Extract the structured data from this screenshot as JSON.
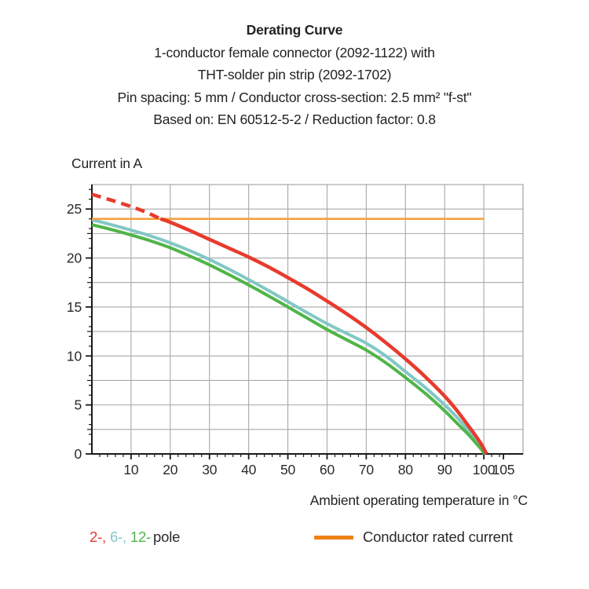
{
  "header": {
    "title": "Derating Curve",
    "subtitle_lines": [
      "1-conductor female connector (2092-1122) with",
      "THT-solder pin strip (2092-1702)",
      "Pin spacing: 5 mm / Conductor cross-section: 2.5 mm² \"f-st\"",
      "Based on: EN 60512-5-2 / Reduction factor: 0.8"
    ]
  },
  "chart_data": {
    "type": "line",
    "title": "Derating Curve",
    "xlabel": "Ambient operating temperature in °C",
    "ylabel": "Current in A",
    "xlim": [
      0,
      110
    ],
    "ylim": [
      0,
      27.5
    ],
    "x_major_ticks": [
      10,
      20,
      30,
      40,
      50,
      60,
      70,
      80,
      90,
      100,
      105
    ],
    "y_major_ticks": [
      0,
      5,
      10,
      15,
      20,
      25
    ],
    "x_minor_step": 2,
    "y_minor_step": 1,
    "x_grid_step": 10,
    "y_grid_step": 2.5,
    "grid": true,
    "legend_position": "bottom",
    "grid_color": "#a8a8a8",
    "axis_color": "#1a1a1a",
    "series": [
      {
        "name": "6-pole",
        "color": "#82c7c5",
        "style": "solid",
        "width": 4,
        "points": [
          [
            0,
            23.9
          ],
          [
            5,
            23.4
          ],
          [
            10,
            22.85
          ],
          [
            15,
            22.25
          ],
          [
            20,
            21.55
          ],
          [
            25,
            20.75
          ],
          [
            30,
            19.85
          ],
          [
            35,
            18.85
          ],
          [
            40,
            17.8
          ],
          [
            45,
            16.7
          ],
          [
            50,
            15.55
          ],
          [
            55,
            14.4
          ],
          [
            60,
            13.3
          ],
          [
            65,
            12.3
          ],
          [
            70,
            11.3
          ],
          [
            75,
            10.0
          ],
          [
            80,
            8.4
          ],
          [
            85,
            6.8
          ],
          [
            90,
            5.0
          ],
          [
            93,
            3.8
          ],
          [
            96,
            2.4
          ],
          [
            98,
            1.4
          ],
          [
            99.5,
            0.6
          ],
          [
            100.4,
            0
          ]
        ]
      },
      {
        "name": "12-pole",
        "color": "#50b548",
        "style": "solid",
        "width": 4,
        "points": [
          [
            0,
            23.4
          ],
          [
            5,
            22.9
          ],
          [
            10,
            22.35
          ],
          [
            15,
            21.75
          ],
          [
            20,
            21.05
          ],
          [
            25,
            20.2
          ],
          [
            30,
            19.3
          ],
          [
            35,
            18.3
          ],
          [
            40,
            17.25
          ],
          [
            45,
            16.15
          ],
          [
            50,
            15.0
          ],
          [
            55,
            13.85
          ],
          [
            60,
            12.7
          ],
          [
            65,
            11.65
          ],
          [
            70,
            10.6
          ],
          [
            75,
            9.3
          ],
          [
            80,
            7.8
          ],
          [
            85,
            6.2
          ],
          [
            90,
            4.4
          ],
          [
            93,
            3.2
          ],
          [
            96,
            2.0
          ],
          [
            98,
            1.1
          ],
          [
            99.5,
            0.4
          ],
          [
            100.1,
            0
          ]
        ]
      },
      {
        "name": "Conductor rated current",
        "color": "#f6a03c",
        "style": "solid",
        "width": 2.6,
        "points": [
          [
            0,
            24
          ],
          [
            100,
            24
          ]
        ]
      },
      {
        "name": "2-pole (overload region)",
        "color": "#e73b2d",
        "style": "dashed",
        "width": 4.5,
        "points": [
          [
            0,
            26.5
          ],
          [
            5,
            25.9
          ],
          [
            10,
            25.25
          ],
          [
            14,
            24.65
          ],
          [
            17.5,
            24.0
          ]
        ]
      },
      {
        "name": "2-pole",
        "color": "#e73b2d",
        "style": "solid",
        "width": 4.5,
        "points": [
          [
            17.5,
            24.0
          ],
          [
            20,
            23.65
          ],
          [
            25,
            22.8
          ],
          [
            30,
            21.9
          ],
          [
            35,
            21.0
          ],
          [
            40,
            20.1
          ],
          [
            45,
            19.1
          ],
          [
            50,
            18.0
          ],
          [
            55,
            16.85
          ],
          [
            60,
            15.6
          ],
          [
            65,
            14.3
          ],
          [
            70,
            12.9
          ],
          [
            75,
            11.35
          ],
          [
            80,
            9.7
          ],
          [
            85,
            7.9
          ],
          [
            90,
            5.9
          ],
          [
            93,
            4.5
          ],
          [
            96,
            2.9
          ],
          [
            98,
            1.8
          ],
          [
            99.5,
            0.9
          ],
          [
            100.7,
            0
          ]
        ]
      }
    ]
  },
  "legend": {
    "pole_items": [
      {
        "label": "2-",
        "color": "#e73b2d"
      },
      {
        "label": "6-",
        "color": "#82c7c5"
      },
      {
        "label": "12-",
        "color": "#50b548"
      }
    ],
    "pole_suffix": "pole",
    "rated_label": "Conductor rated current",
    "rated_color": "#ef8013"
  }
}
